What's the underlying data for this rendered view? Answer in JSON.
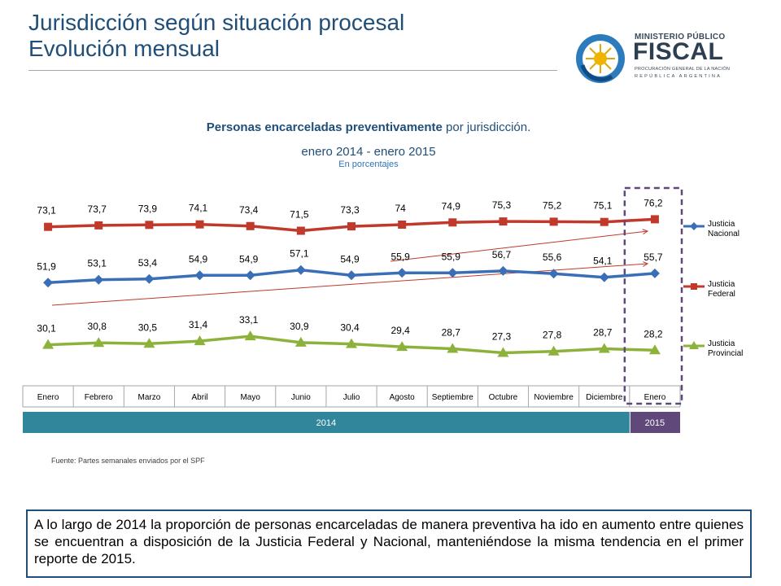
{
  "header": {
    "title_line1": "Jurisdicción según situación procesal",
    "title_line2": "Evolución mensual"
  },
  "logo": {
    "line1": "MINISTERIO PÚBLICO",
    "line2": "FISCAL",
    "line3": "PROCURACIÓN GENERAL DE LA NACIÓN",
    "line4": "REPÚBLICA ARGENTINA"
  },
  "chart": {
    "title_bold": "Personas encarceladas preventivamente",
    "title_rest": " por jurisdicción.",
    "subtitle": "enero 2014 - enero 2015",
    "note": "En porcentajes"
  },
  "chart_data": {
    "type": "line",
    "categories": [
      "Enero",
      "Febrero",
      "Marzo",
      "Abril",
      "Mayo",
      "Junio",
      "Julio",
      "Agosto",
      "Septiembre",
      "Octubre",
      "Noviembre",
      "Diciembre",
      "Enero"
    ],
    "year_bands": [
      {
        "label": "2014",
        "from": 0,
        "to": 11,
        "color": "#31869b"
      },
      {
        "label": "2015",
        "from": 12,
        "to": 12,
        "color": "#60497a"
      }
    ],
    "series": [
      {
        "name": "Justicia Federal",
        "color": "#c0392b",
        "marker": "square",
        "values": [
          73.1,
          73.7,
          73.9,
          74.1,
          73.4,
          71.5,
          73.3,
          74,
          74.9,
          75.3,
          75.2,
          75.1,
          76.2
        ],
        "labels": [
          "73,1",
          "73,7",
          "73,9",
          "74,1",
          "73,4",
          "71,5",
          "73,3",
          "74",
          "74,9",
          "75,3",
          "75,2",
          "75,1",
          "76,2"
        ]
      },
      {
        "name": "Justicia Nacional",
        "color": "#3a6fb7",
        "marker": "diamond",
        "values": [
          51.9,
          53.1,
          53.4,
          54.9,
          54.9,
          57.1,
          54.9,
          55.9,
          55.9,
          56.7,
          55.6,
          54.1,
          55.7
        ],
        "labels": [
          "51,9",
          "53,1",
          "53,4",
          "54,9",
          "54,9",
          "57,1",
          "54,9",
          "55,9",
          "55,9",
          "56,7",
          "55,6",
          "54,1",
          "55,7"
        ]
      },
      {
        "name": "Justicia Provincial",
        "color": "#8db23c",
        "marker": "triangle",
        "values": [
          30.1,
          30.8,
          30.5,
          31.4,
          33.1,
          30.9,
          30.4,
          29.4,
          28.7,
          27.3,
          27.8,
          28.7,
          28.2
        ],
        "labels": [
          "30,1",
          "30,8",
          "30,5",
          "31,4",
          "33,1",
          "30,9",
          "30,4",
          "29,4",
          "28,7",
          "27,3",
          "27,8",
          "28,7",
          "28,2"
        ]
      }
    ],
    "legend": [
      {
        "line1": "Justicia",
        "line2": "Nacional",
        "color": "#3a6fb7",
        "marker": "diamond"
      },
      {
        "line1": "Justicia",
        "line2": "Federal",
        "color": "#c0392b",
        "marker": "square"
      },
      {
        "line1": "Justicia",
        "line2": "Provincial",
        "color": "#8db23c",
        "marker": "triangle"
      }
    ],
    "legend_position": "right",
    "grid": false,
    "highlight": {
      "category_index": 12,
      "style": "dashed-box",
      "color": "#60497a"
    }
  },
  "footer": {
    "source": "Fuente: Partes semanales enviados por el SPF",
    "summary": "A lo largo de 2014 la proporción de personas encarceladas de manera preventiva ha ido en aumento entre quienes se encuentran a disposición de la Justicia Federal y Nacional, manteniéndose la misma tendencia en el primer reporte de 2015."
  }
}
